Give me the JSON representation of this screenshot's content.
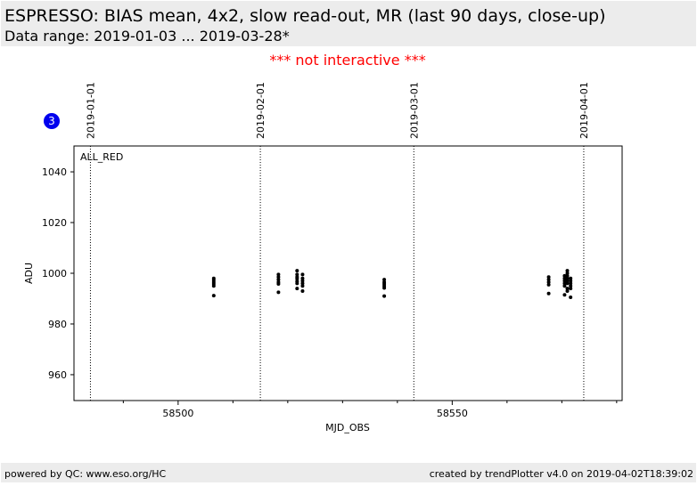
{
  "page": {
    "notice": "*** not interactive ***",
    "footer_left": "powered by QC: www.eso.org/HC",
    "footer_right": "created by trendPlotter v4.0 on 2019-04-02T18:39:02",
    "badge": 3
  },
  "chart_data": {
    "type": "scatter",
    "title": "ESPRESSO: BIAS mean, 4x2, slow read-out, MR (last 90 days, close-up)",
    "subtitle": "Data range: 2019-01-03 ... 2019-03-28*",
    "panel_label": "ALL_RED",
    "x_label": "MJD_OBS",
    "y_label": "ADU",
    "xlim": [
      58481,
      58581
    ],
    "xticks": [
      58500,
      58550
    ],
    "xminorticks": [
      58490,
      58510,
      58520,
      58530,
      58540,
      58560,
      58570,
      58580
    ],
    "ylim": [
      949.8,
      1050.2
    ],
    "yticks": [
      960,
      980,
      1000,
      1020,
      1040
    ],
    "vlines": [
      {
        "value": 58484,
        "label": "2019-01-01"
      },
      {
        "value": 58515,
        "label": "2019-02-01"
      },
      {
        "value": 58543,
        "label": "2019-03-01"
      },
      {
        "value": 58574,
        "label": "2019-04-01"
      }
    ],
    "series": [
      {
        "color": "#000000",
        "x": [
          58506.5,
          58506.5,
          58506.5,
          58506.5,
          58506.5,
          58506.5,
          58518.3,
          58518.3,
          58518.3,
          58518.3,
          58518.3,
          58518.3,
          58521.7,
          58521.7,
          58521.7,
          58521.7,
          58521.7,
          58521.7,
          58521.7,
          58522.7,
          58522.7,
          58522.7,
          58522.7,
          58522.7,
          58522.7,
          58537.6,
          58537.6,
          58537.6,
          58537.6,
          58537.6,
          58537.6,
          58567.6,
          58567.6,
          58567.6,
          58567.6,
          58567.6,
          58570.5,
          58570.5,
          58570.5,
          58570.5,
          58570.5,
          58570.5,
          58571.0,
          58571.0,
          58571.0,
          58571.0,
          58571.0,
          58571.0,
          58571.0,
          58571.0,
          58571.6,
          58571.6,
          58571.6,
          58571.6,
          58571.6,
          58571.6
        ],
        "values": [
          998,
          997.3,
          996.5,
          995.8,
          995,
          991.2,
          999.5,
          998.5,
          997.5,
          996.5,
          995.8,
          992.5,
          1001,
          999.5,
          998.5,
          997.8,
          996.8,
          996,
          994,
          999.5,
          998,
          997,
          996,
          995,
          993,
          997.5,
          996.5,
          995.8,
          995,
          994.2,
          991,
          998.5,
          997.5,
          996.5,
          995.5,
          992,
          999,
          998,
          997,
          996,
          995,
          991.5,
          1001,
          1000,
          999,
          998,
          997,
          996,
          994,
          993,
          998,
          997,
          996,
          995,
          994,
          990.5
        ]
      }
    ]
  }
}
